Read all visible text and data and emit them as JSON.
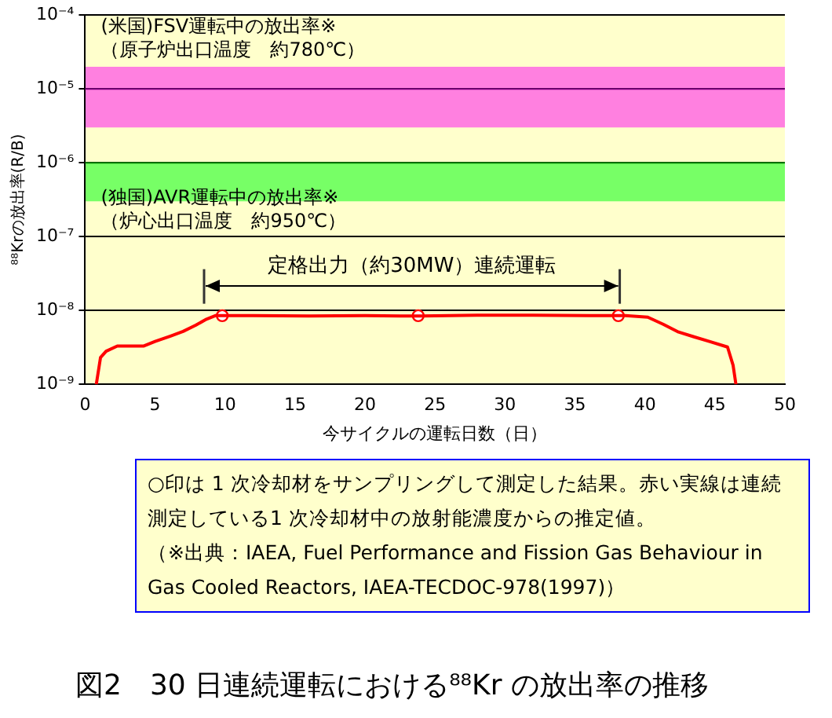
{
  "chart_data": {
    "type": "line",
    "title": "図2　30 日連続運転における⁸⁸Kr の放出率の推移",
    "xlabel": "今サイクルの運転日数（日）",
    "ylabel": "⁸⁸Krの放出率(R/B)",
    "annotations": [
      "定格出力（約30MW）連続運転",
      "○印は 1 次冷却材をサンプリングして測定した結果。赤い実線は連続測定している1 次冷却材中の放射能濃度からの推定値。",
      "（※出典：IAEA, Fuel Performance and Fission Gas Behaviour in Gas Cooled Reactors, IAEA-TECDOC-978(1997)）"
    ],
    "log": "y",
    "grid": "y",
    "legend": false,
    "xlim": [
      0,
      50
    ],
    "xticks": [
      0,
      5,
      10,
      15,
      20,
      25,
      30,
      35,
      40,
      45,
      50
    ],
    "ylim": [
      1e-09,
      0.0001
    ],
    "yticks": [
      {
        "value": 1e-09,
        "label": "10⁻⁹"
      },
      {
        "value": 1e-08,
        "label": "10⁻⁸"
      },
      {
        "value": 1e-07,
        "label": "10⁻⁷"
      },
      {
        "value": 1e-06,
        "label": "10⁻⁶"
      },
      {
        "value": 1e-05,
        "label": "10⁻⁵"
      },
      {
        "value": 0.0001,
        "label": "10⁻⁴"
      }
    ],
    "bands": [
      {
        "axis": "y",
        "from": 3e-06,
        "to": 2e-05,
        "color": "#ff80e0",
        "label": "(米国)FSV運転中の放出率※\n（原子炉出口温度　約780℃）"
      },
      {
        "axis": "y",
        "from": 3e-07,
        "to": 1e-06,
        "color": "#77ff66",
        "label": "(独国)AVR運転中の放出率※\n（炉心出口温度　約950℃）"
      }
    ],
    "ref_lines": [
      {
        "axis": "y",
        "value": 1e-05,
        "color": "#800080"
      },
      {
        "axis": "y",
        "value": 1e-06,
        "color": "#008000"
      },
      {
        "axis": "x",
        "value": 8.5,
        "color": "#333333"
      },
      {
        "axis": "x",
        "value": 38.2,
        "color": "#333333"
      }
    ],
    "series": [
      {
        "type": "line",
        "color": "#ff0000",
        "marker": "none",
        "x": [
          0.8,
          1.1,
          1.5,
          2.3,
          4.2,
          5,
          6.1,
          7,
          7.9,
          8.6,
          9.3,
          12,
          16,
          20,
          24,
          28,
          32,
          36,
          38.6,
          40.2,
          41.3,
          42.4,
          43.5,
          44.6,
          45.9,
          46.3,
          46.5
        ],
        "values": [
          1e-09,
          2.3e-09,
          2.8e-09,
          3.3e-09,
          3.3e-09,
          3.8e-09,
          4.5e-09,
          5.2e-09,
          6.3e-09,
          7.5e-09,
          8.5e-09,
          8.5e-09,
          8.4e-09,
          8.5e-09,
          8.4e-09,
          8.6e-09,
          8.6e-09,
          8.5e-09,
          8.5e-09,
          8.1e-09,
          6.5e-09,
          5.1e-09,
          4.4e-09,
          3.8e-09,
          3.2e-09,
          1.8e-09,
          1e-09
        ]
      },
      {
        "type": "scatter",
        "color": "#ff0000",
        "marker": "circle",
        "x": [
          9.8,
          23.8,
          38.1
        ],
        "values": [
          8.5e-09,
          8.5e-09,
          8.5e-09
        ]
      }
    ]
  }
}
